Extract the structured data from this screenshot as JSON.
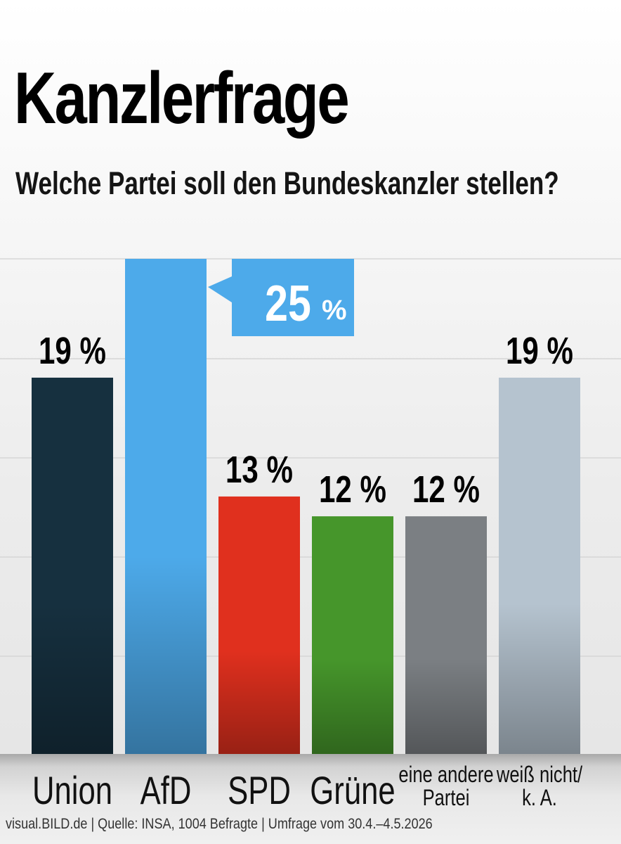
{
  "header": {
    "title": "Kanzlerfrage",
    "subtitle": "Welche Partei soll den Bundeskanzler stellen?"
  },
  "footer": {
    "source": "visual.BILD.de | Quelle: INSA, 1004 Befragte | Umfrage vom 30.4.–4.5.2026"
  },
  "chart_data": {
    "type": "bar",
    "unit": "%",
    "grid": true,
    "ylim": [
      0,
      25
    ],
    "categories": [
      {
        "label": [
          "Union"
        ],
        "value": 19,
        "color": "#16303f",
        "value_label": "19 %"
      },
      {
        "label": [
          "AfD"
        ],
        "value": 25,
        "color": "#4daaea",
        "value_label": "25",
        "value_unit": "%",
        "highlight": true
      },
      {
        "label": [
          "SPD"
        ],
        "value": 13,
        "color": "#e0301e",
        "value_label": "13 %"
      },
      {
        "label": [
          "Grüne"
        ],
        "value": 12,
        "color": "#46962b",
        "value_label": "12 %"
      },
      {
        "label": [
          "eine andere",
          "Partei"
        ],
        "value": 12,
        "color": "#7b7f83",
        "value_label": "12 %"
      },
      {
        "label": [
          "weiß nicht/",
          "k. A."
        ],
        "value": 19,
        "color": "#b5c3cf",
        "value_label": "19 %"
      }
    ]
  }
}
